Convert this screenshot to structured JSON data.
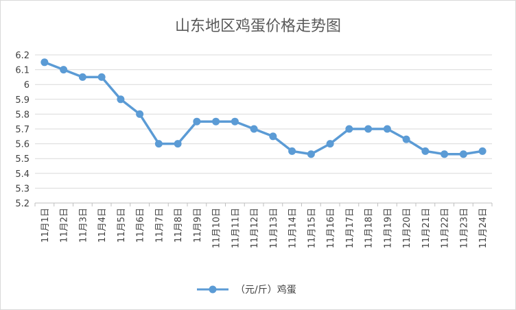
{
  "chart_data": {
    "type": "line",
    "title": "山东地区鸡蛋价格走势图",
    "categories": [
      "11月1日",
      "11月2日",
      "11月3日",
      "11月4日",
      "11月5日",
      "11月6日",
      "11月7日",
      "11月8日",
      "11月9日",
      "11月10日",
      "11月11日",
      "11月12日",
      "11月13日",
      "11月14日",
      "11月15日",
      "11月16日",
      "11月17日",
      "11月18日",
      "11月19日",
      "11月20日",
      "11月21日",
      "11月22日",
      "11月23日",
      "11月24日"
    ],
    "series": [
      {
        "name": "（元/斤）鸡蛋",
        "color": "#5b9bd5",
        "values": [
          6.15,
          6.1,
          6.05,
          6.05,
          5.9,
          5.8,
          5.6,
          5.6,
          5.75,
          5.75,
          5.75,
          5.7,
          5.65,
          5.55,
          5.53,
          5.6,
          5.7,
          5.7,
          5.7,
          5.63,
          5.55,
          5.53,
          5.53,
          5.55
        ]
      }
    ],
    "ylim": [
      5.2,
      6.2
    ],
    "yticks": [
      "5.2",
      "5.3",
      "5.4",
      "5.5",
      "5.6",
      "5.7",
      "5.8",
      "5.9",
      "6",
      "6.1",
      "6.2"
    ],
    "grid": true,
    "legend": "bottom"
  }
}
